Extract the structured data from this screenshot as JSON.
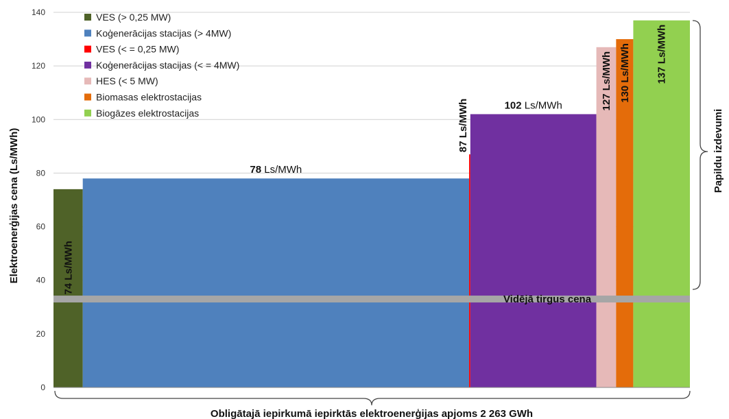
{
  "chart_data": {
    "type": "bar",
    "ylabel": "Elektroenerģijas cena (Ls/MWh)",
    "xlabel": "Obligātajā iepirkumā iepirktās elektroenerģijas apjoms 2 263 GWh",
    "right_label": "Papildu izdevumi",
    "ylim": [
      0,
      140
    ],
    "yticks": [
      "0",
      "20",
      "40",
      "60",
      "80",
      "100",
      "120",
      "140"
    ],
    "grid": true,
    "legend_position": "top-left",
    "unit": "Ls/MWh",
    "average_market_price": {
      "label": "Vidējā tirgus cena",
      "value": 33,
      "color": "#a6a6a6"
    },
    "series": [
      {
        "name": "VES (> 0,25 MW)",
        "value": 74,
        "label_num": "74",
        "label_unit": "Ls/MWh",
        "label_style": "vertical-inside",
        "color": "#4f6228",
        "width_share": 0.046
      },
      {
        "name": "Koģenerācijas stacijas (> 4MW)",
        "value": 78,
        "label_num": "78",
        "label_unit": "Ls/MWh",
        "label_style": "horizontal-above",
        "color": "#4f81bd",
        "width_share": 0.607
      },
      {
        "name": "VES (< = 0,25 MW)",
        "value": 87,
        "label_num": "87",
        "label_unit": "Ls/MWh",
        "label_style": "vertical-left",
        "color": "#ff0000",
        "width_share": 0.002
      },
      {
        "name": "Koģenerācijas stacijas (< =  4MW)",
        "value": 102,
        "label_num": "102",
        "label_unit": "Ls/MWh",
        "label_style": "horizontal-above",
        "color": "#7030a0",
        "width_share": 0.198
      },
      {
        "name": "HES (< 5 MW)",
        "value": 127,
        "label_num": "127",
        "label_unit": "Ls/MWh",
        "label_style": "vertical-top",
        "color": "#e6b9b8",
        "width_share": 0.031
      },
      {
        "name": "Biomasas elektrostacijas",
        "value": 130,
        "label_num": "130",
        "label_unit": "Ls/MWh",
        "label_style": "vertical-top",
        "color": "#e46c0a",
        "width_share": 0.027
      },
      {
        "name": "Biogāzes elektrostacijas",
        "value": 137,
        "label_num": "137",
        "label_unit": "Ls/MWh",
        "label_style": "vertical-top",
        "color": "#92d050",
        "width_share": 0.089
      }
    ]
  }
}
